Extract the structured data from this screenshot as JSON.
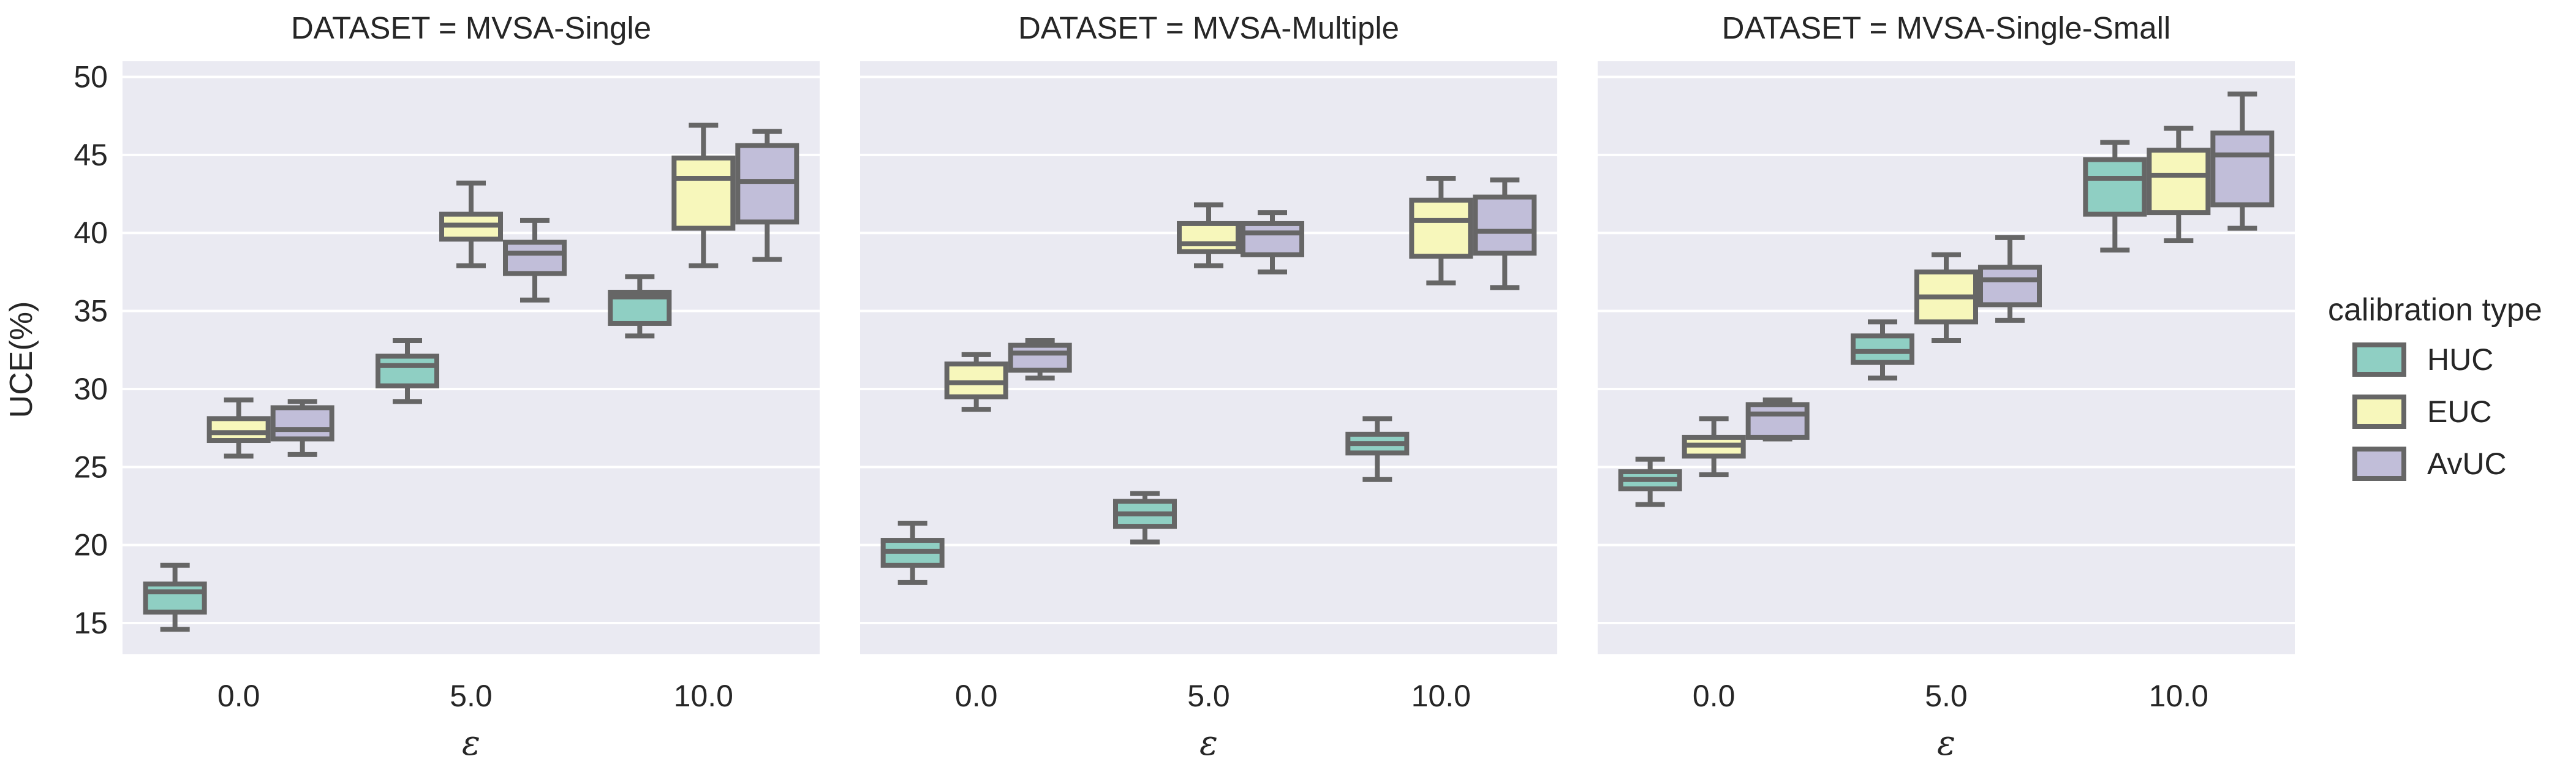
{
  "chart_data": {
    "type": "box",
    "ylabel": "UCE(%)",
    "xlabel": "ε",
    "ylim": [
      13,
      51
    ],
    "yticks": [
      15,
      20,
      25,
      30,
      35,
      40,
      45,
      50
    ],
    "categories": [
      "0.0",
      "5.0",
      "10.0"
    ],
    "legend": {
      "title": "calibration type",
      "position": "right",
      "entries": [
        {
          "name": "HUC",
          "color": "#8fcfc3"
        },
        {
          "name": "EUC",
          "color": "#f7f7bb"
        },
        {
          "name": "AvUC",
          "color": "#c1bed9"
        }
      ]
    },
    "panels": [
      {
        "title": "DATASET = MVSA-Single",
        "groups": [
          {
            "category": "0.0",
            "boxes": [
              {
                "series": "HUC",
                "whisker_low": 14.6,
                "q1": 15.7,
                "median": 17.0,
                "q3": 17.5,
                "whisker_high": 18.7
              },
              {
                "series": "EUC",
                "whisker_low": 25.7,
                "q1": 26.7,
                "median": 27.2,
                "q3": 28.1,
                "whisker_high": 29.3
              },
              {
                "series": "AvUC",
                "whisker_low": 25.8,
                "q1": 26.8,
                "median": 27.4,
                "q3": 28.8,
                "whisker_high": 29.2
              }
            ]
          },
          {
            "category": "5.0",
            "boxes": [
              {
                "series": "HUC",
                "whisker_low": 29.2,
                "q1": 30.2,
                "median": 31.5,
                "q3": 32.1,
                "whisker_high": 33.1
              },
              {
                "series": "EUC",
                "whisker_low": 37.9,
                "q1": 39.6,
                "median": 40.5,
                "q3": 41.2,
                "whisker_high": 43.2
              },
              {
                "series": "AvUC",
                "whisker_low": 35.7,
                "q1": 37.4,
                "median": 38.7,
                "q3": 39.4,
                "whisker_high": 40.8
              }
            ]
          },
          {
            "category": "10.0",
            "boxes": [
              {
                "series": "HUC",
                "whisker_low": 33.4,
                "q1": 34.2,
                "median": 35.9,
                "q3": 36.2,
                "whisker_high": 37.2
              },
              {
                "series": "EUC",
                "whisker_low": 37.9,
                "q1": 40.3,
                "median": 43.5,
                "q3": 44.8,
                "whisker_high": 46.9
              },
              {
                "series": "AvUC",
                "whisker_low": 38.3,
                "q1": 40.7,
                "median": 43.3,
                "q3": 45.6,
                "whisker_high": 46.5
              }
            ]
          }
        ]
      },
      {
        "title": "DATASET = MVSA-Multiple",
        "groups": [
          {
            "category": "0.0",
            "boxes": [
              {
                "series": "HUC",
                "whisker_low": 17.6,
                "q1": 18.7,
                "median": 19.6,
                "q3": 20.3,
                "whisker_high": 21.4
              },
              {
                "series": "EUC",
                "whisker_low": 28.7,
                "q1": 29.5,
                "median": 30.4,
                "q3": 31.6,
                "whisker_high": 32.2
              },
              {
                "series": "AvUC",
                "whisker_low": 30.7,
                "q1": 31.2,
                "median": 32.3,
                "q3": 32.8,
                "whisker_high": 33.1
              }
            ]
          },
          {
            "category": "5.0",
            "boxes": [
              {
                "series": "HUC",
                "whisker_low": 20.2,
                "q1": 21.2,
                "median": 22.0,
                "q3": 22.8,
                "whisker_high": 23.3
              },
              {
                "series": "EUC",
                "whisker_low": 37.9,
                "q1": 38.8,
                "median": 39.3,
                "q3": 40.6,
                "whisker_high": 41.8
              },
              {
                "series": "AvUC",
                "whisker_low": 37.5,
                "q1": 38.6,
                "median": 40.0,
                "q3": 40.6,
                "whisker_high": 41.3
              }
            ]
          },
          {
            "category": "10.0",
            "boxes": [
              {
                "series": "HUC",
                "whisker_low": 24.2,
                "q1": 25.9,
                "median": 26.5,
                "q3": 27.1,
                "whisker_high": 28.1
              },
              {
                "series": "EUC",
                "whisker_low": 36.8,
                "q1": 38.5,
                "median": 40.8,
                "q3": 42.1,
                "whisker_high": 43.5
              },
              {
                "series": "AvUC",
                "whisker_low": 36.5,
                "q1": 38.7,
                "median": 40.1,
                "q3": 42.3,
                "whisker_high": 43.4
              }
            ]
          }
        ]
      },
      {
        "title": "DATASET = MVSA-Single-Small",
        "groups": [
          {
            "category": "0.0",
            "boxes": [
              {
                "series": "HUC",
                "whisker_low": 22.6,
                "q1": 23.6,
                "median": 24.2,
                "q3": 24.7,
                "whisker_high": 25.5
              },
              {
                "series": "EUC",
                "whisker_low": 24.5,
                "q1": 25.7,
                "median": 26.4,
                "q3": 26.9,
                "whisker_high": 28.1
              },
              {
                "series": "AvUC",
                "whisker_low": 26.8,
                "q1": 26.9,
                "median": 28.4,
                "q3": 29.0,
                "whisker_high": 29.3
              }
            ]
          },
          {
            "category": "5.0",
            "boxes": [
              {
                "series": "HUC",
                "whisker_low": 30.7,
                "q1": 31.7,
                "median": 32.4,
                "q3": 33.4,
                "whisker_high": 34.3
              },
              {
                "series": "EUC",
                "whisker_low": 33.1,
                "q1": 34.3,
                "median": 35.9,
                "q3": 37.5,
                "whisker_high": 38.6
              },
              {
                "series": "AvUC",
                "whisker_low": 34.4,
                "q1": 35.4,
                "median": 37.0,
                "q3": 37.8,
                "whisker_high": 39.7
              }
            ]
          },
          {
            "category": "10.0",
            "boxes": [
              {
                "series": "HUC",
                "whisker_low": 38.9,
                "q1": 41.2,
                "median": 43.5,
                "q3": 44.7,
                "whisker_high": 45.8
              },
              {
                "series": "EUC",
                "whisker_low": 39.5,
                "q1": 41.3,
                "median": 43.7,
                "q3": 45.3,
                "whisker_high": 46.7
              },
              {
                "series": "AvUC",
                "whisker_low": 40.3,
                "q1": 41.8,
                "median": 45.0,
                "q3": 46.4,
                "whisker_high": 48.9
              }
            ]
          }
        ]
      }
    ]
  }
}
